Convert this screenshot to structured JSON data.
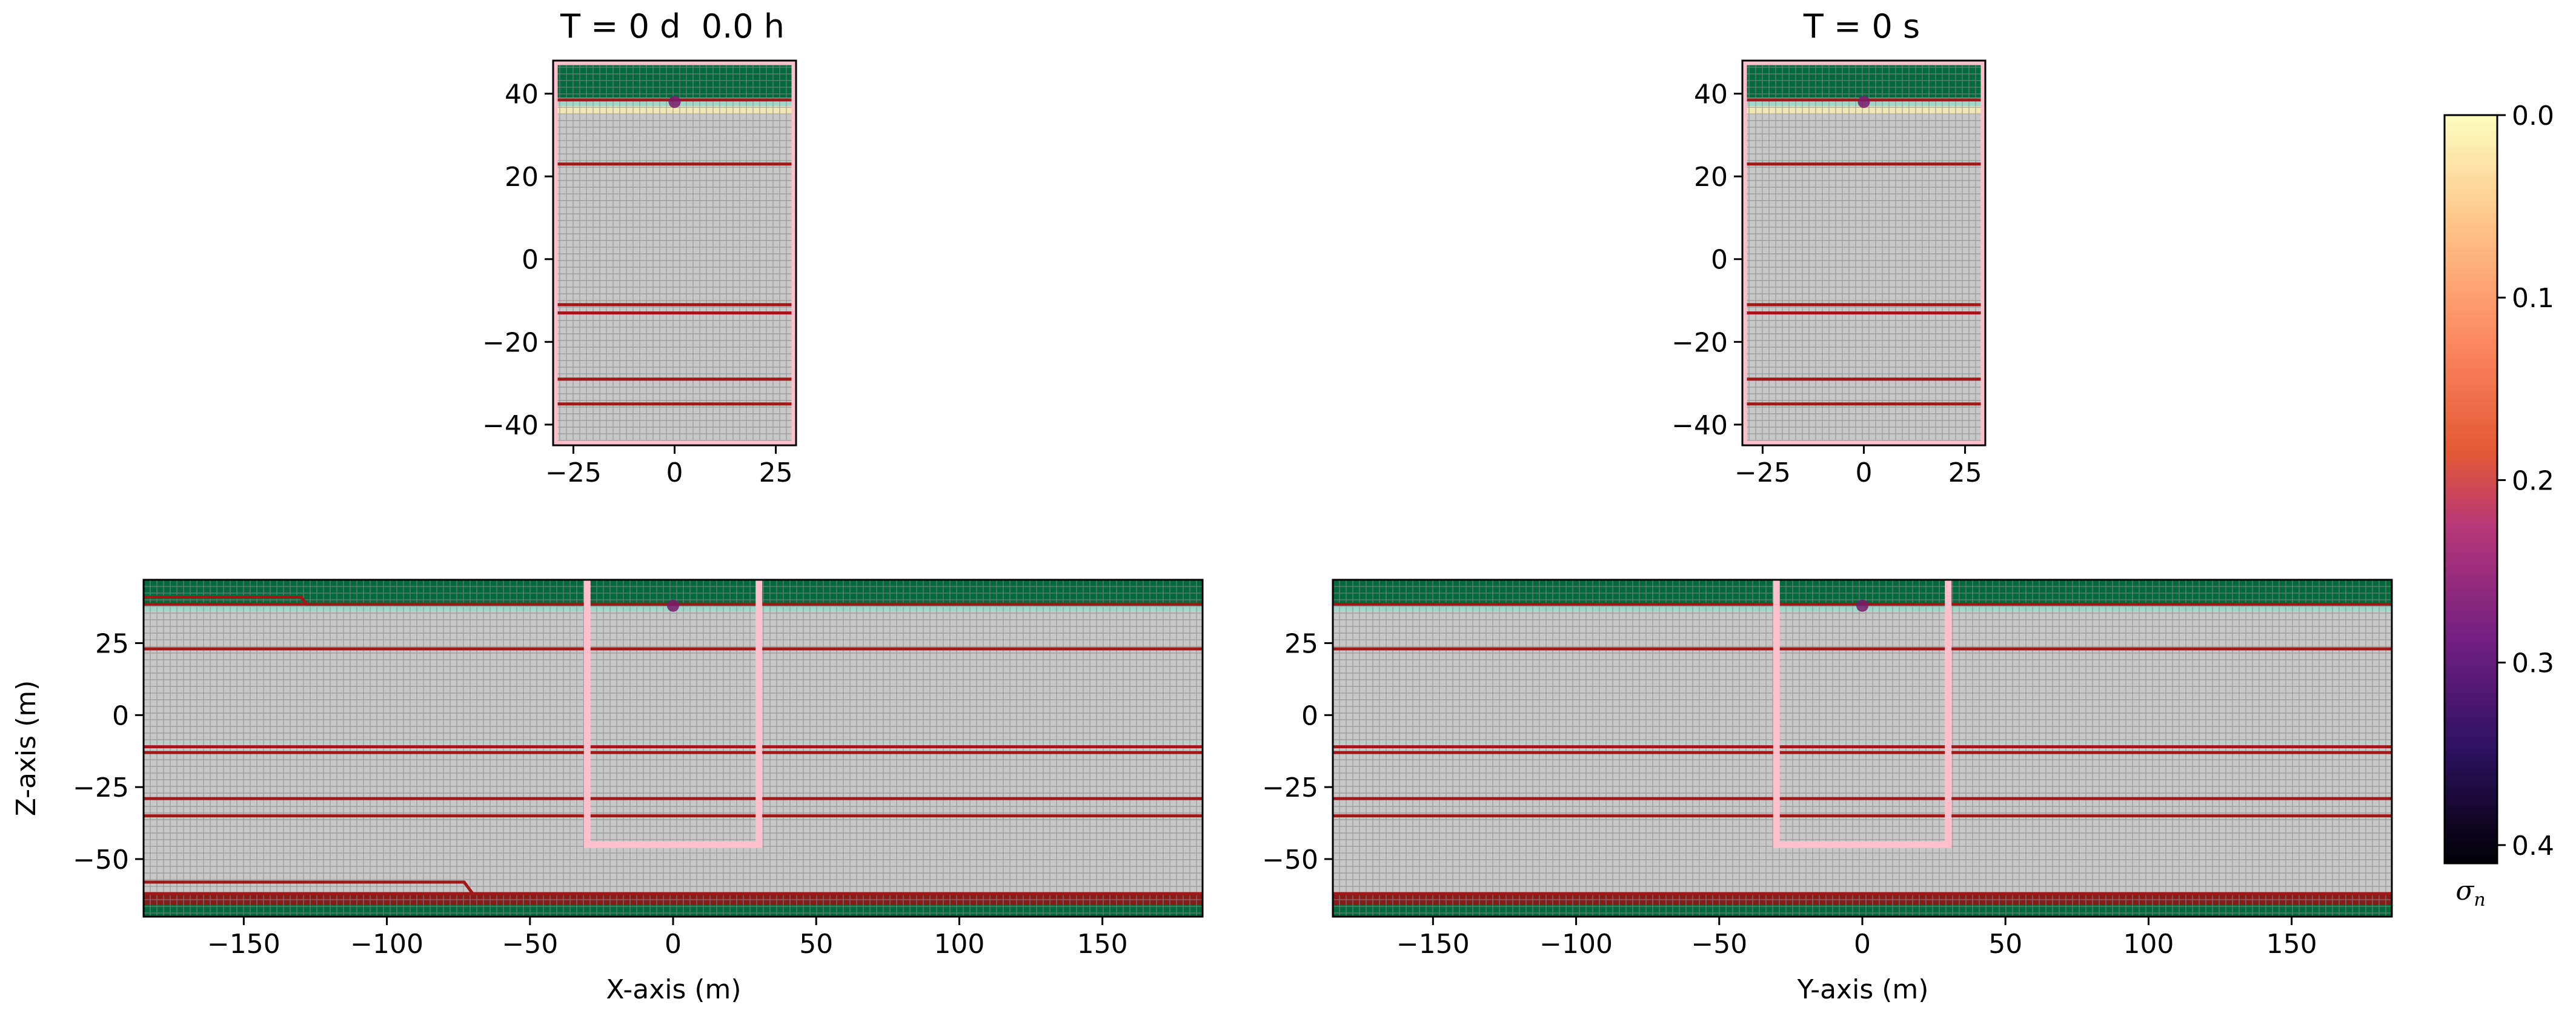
{
  "chart_data": [
    {
      "type": "heatmap",
      "panel": "top-left",
      "title": "T = 0 d  0.0 h",
      "xlabel": "",
      "ylabel": "",
      "xlim": [
        -30,
        30
      ],
      "ylim": [
        -45,
        48
      ],
      "xticks": [
        -25,
        0,
        25
      ],
      "xtick_labels": [
        "−25",
        "0",
        "25"
      ],
      "yticks": [
        40,
        20,
        0,
        -20,
        -40
      ],
      "ytick_labels": [
        "40",
        "20",
        "0",
        "−20",
        "−40"
      ],
      "layers": [
        {
          "from": 39,
          "to": 47,
          "color": "#006a3d"
        },
        {
          "from": 37,
          "to": 39,
          "color": "#9fd8c9"
        },
        {
          "from": 35,
          "to": 37,
          "color": "#efe7b4"
        },
        {
          "from": -45,
          "to": 35,
          "color": "#c8c8c8"
        }
      ],
      "fault_lines_z": [
        38.5,
        23,
        -11,
        -13,
        -29,
        -35
      ],
      "marker": {
        "x": 0,
        "z": 38
      },
      "grid": true
    },
    {
      "type": "heatmap",
      "panel": "top-right",
      "title": "T = 0 s",
      "xlabel": "",
      "ylabel": "",
      "xlim": [
        -30,
        30
      ],
      "ylim": [
        -45,
        48
      ],
      "xticks": [
        -25,
        0,
        25
      ],
      "xtick_labels": [
        "−25",
        "0",
        "25"
      ],
      "yticks": [
        40,
        20,
        0,
        -20,
        -40
      ],
      "ytick_labels": [
        "40",
        "20",
        "0",
        "−20",
        "−40"
      ],
      "layers": [
        {
          "from": 39,
          "to": 47,
          "color": "#006a3d"
        },
        {
          "from": 37,
          "to": 39,
          "color": "#9fd8c9"
        },
        {
          "from": 35,
          "to": 37,
          "color": "#efe7b4"
        },
        {
          "from": -45,
          "to": 35,
          "color": "#c8c8c8"
        }
      ],
      "fault_lines_z": [
        38.5,
        23,
        -11,
        -13,
        -29,
        -35
      ],
      "marker": {
        "x": 0,
        "z": 38
      },
      "grid": true
    },
    {
      "type": "heatmap",
      "panel": "bottom-left",
      "title": "",
      "xlabel": "X-axis (m)",
      "ylabel": "Z-axis (m)",
      "xlim": [
        -185,
        185
      ],
      "ylim": [
        -70,
        47
      ],
      "xticks": [
        -150,
        -100,
        -50,
        0,
        50,
        100,
        150
      ],
      "xtick_labels": [
        "−150",
        "−100",
        "−50",
        "0",
        "50",
        "100",
        "150"
      ],
      "yticks": [
        25,
        0,
        -25,
        -50
      ],
      "ytick_labels": [
        "25",
        "0",
        "−25",
        "−50"
      ],
      "layers": [
        {
          "from": 39,
          "to": 47,
          "color": "#006a3d"
        },
        {
          "from": 36,
          "to": 39,
          "color": "#9fd8c9"
        },
        {
          "from": -62,
          "to": 36,
          "color": "#c8c8c8"
        },
        {
          "from": -66,
          "to": -62,
          "color": "#8b1a1a"
        },
        {
          "from": -70,
          "to": -66,
          "color": "#006a3d"
        }
      ],
      "fault_lines_z": [
        38.5,
        23,
        -11,
        -13,
        -29,
        -35,
        -62
      ],
      "inset_box": {
        "x0": -30,
        "x1": 30,
        "z0": -45,
        "z1": 47
      },
      "marker": {
        "x": 0,
        "z": 38
      },
      "grid": true
    },
    {
      "type": "heatmap",
      "panel": "bottom-right",
      "title": "",
      "xlabel": "Y-axis (m)",
      "ylabel": "",
      "xlim": [
        -185,
        185
      ],
      "ylim": [
        -70,
        47
      ],
      "xticks": [
        -150,
        -100,
        -50,
        0,
        50,
        100,
        150
      ],
      "xtick_labels": [
        "−150",
        "−100",
        "−50",
        "0",
        "50",
        "100",
        "150"
      ],
      "yticks": [
        25,
        0,
        -25,
        -50
      ],
      "ytick_labels": [
        "25",
        "0",
        "−25",
        "−50"
      ],
      "layers": [
        {
          "from": 39,
          "to": 47,
          "color": "#006a3d"
        },
        {
          "from": 36,
          "to": 39,
          "color": "#9fd8c9"
        },
        {
          "from": -62,
          "to": 36,
          "color": "#c8c8c8"
        },
        {
          "from": -66,
          "to": -62,
          "color": "#8b1a1a"
        },
        {
          "from": -70,
          "to": -66,
          "color": "#006a3d"
        }
      ],
      "fault_lines_z": [
        38.5,
        23,
        -11,
        -13,
        -29,
        -35,
        -62
      ],
      "inset_box": {
        "x0": -30,
        "x1": 30,
        "z0": -45,
        "z1": 47
      },
      "marker": {
        "x": 0,
        "z": 38
      },
      "grid": true
    }
  ],
  "colorbar": {
    "label": "σ",
    "label_sub": "n",
    "range": [
      0.0,
      0.41
    ],
    "ticks": [
      0.0,
      0.1,
      0.2,
      0.3,
      0.4
    ],
    "tick_labels": [
      "0.0",
      "0.1",
      "0.2",
      "0.3",
      "0.4"
    ],
    "colormap": "magma",
    "reversed": true
  },
  "colors": {
    "fault": "#a01818",
    "inset_box": "#ffc0cb",
    "grid_line": "#8a8a8a",
    "marker": "#7a1a6a"
  }
}
